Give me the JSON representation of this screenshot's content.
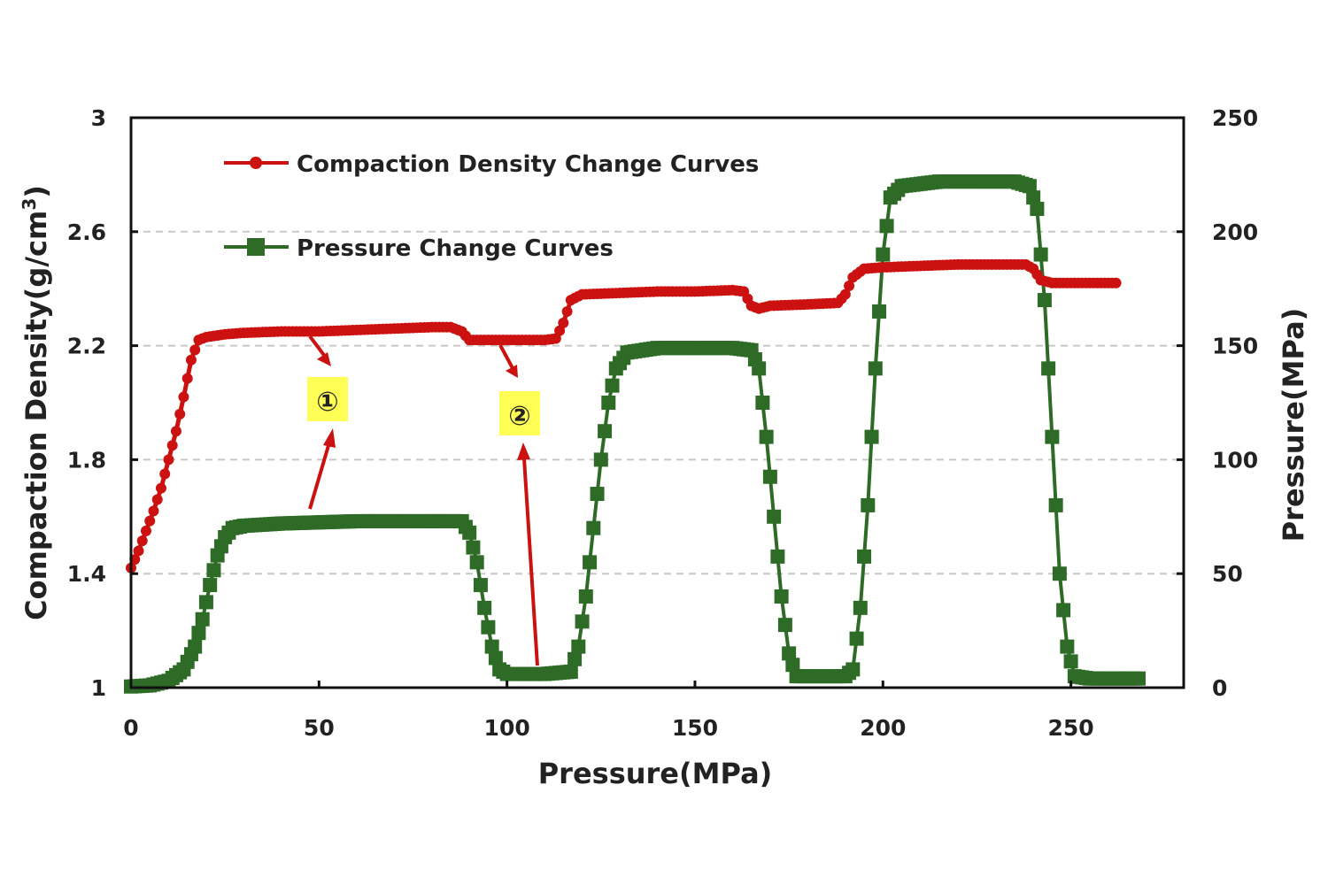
{
  "chart_data": {
    "type": "line",
    "title": "",
    "xlabel": "Pressure(MPa)",
    "ylabel_left": "Compaction Density(g/cm",
    "ylabel_left_sup": "3",
    "ylabel_left_close": ")",
    "ylabel_right": "Pressure(MPa)",
    "xlim": [
      0,
      280
    ],
    "ylim_left": [
      1,
      3
    ],
    "ylim_right": [
      0,
      250
    ],
    "x_ticks": [
      0,
      50,
      100,
      150,
      200,
      250
    ],
    "y_left_ticks": [
      1,
      1.4,
      1.8,
      2.2,
      2.6,
      3
    ],
    "y_right_ticks": [
      0,
      50,
      100,
      150,
      200,
      250
    ],
    "grid": "horizontal dashed",
    "legend_position": "top-left",
    "series": [
      {
        "name": "Compaction Density Change Curves",
        "axis": "left",
        "color": "#cc1111",
        "marker": "circle",
        "points": [
          [
            0,
            1.42
          ],
          [
            2,
            1.48
          ],
          [
            4,
            1.55
          ],
          [
            6,
            1.62
          ],
          [
            8,
            1.7
          ],
          [
            10,
            1.8
          ],
          [
            12,
            1.9
          ],
          [
            14,
            2.02
          ],
          [
            16,
            2.15
          ],
          [
            18,
            2.22
          ],
          [
            20,
            2.23
          ],
          [
            25,
            2.24
          ],
          [
            30,
            2.245
          ],
          [
            40,
            2.25
          ],
          [
            50,
            2.25
          ],
          [
            60,
            2.255
          ],
          [
            70,
            2.26
          ],
          [
            80,
            2.265
          ],
          [
            85,
            2.265
          ],
          [
            88,
            2.25
          ],
          [
            90,
            2.22
          ],
          [
            93,
            2.22
          ],
          [
            100,
            2.22
          ],
          [
            110,
            2.22
          ],
          [
            113,
            2.225
          ],
          [
            115,
            2.28
          ],
          [
            117,
            2.36
          ],
          [
            120,
            2.38
          ],
          [
            130,
            2.385
          ],
          [
            140,
            2.39
          ],
          [
            150,
            2.39
          ],
          [
            160,
            2.395
          ],
          [
            163,
            2.39
          ],
          [
            165,
            2.34
          ],
          [
            167,
            2.33
          ],
          [
            170,
            2.34
          ],
          [
            180,
            2.345
          ],
          [
            188,
            2.35
          ],
          [
            190,
            2.38
          ],
          [
            192,
            2.44
          ],
          [
            195,
            2.47
          ],
          [
            200,
            2.475
          ],
          [
            210,
            2.48
          ],
          [
            220,
            2.485
          ],
          [
            230,
            2.485
          ],
          [
            238,
            2.485
          ],
          [
            240,
            2.47
          ],
          [
            242,
            2.43
          ],
          [
            245,
            2.42
          ],
          [
            250,
            2.42
          ],
          [
            255,
            2.42
          ],
          [
            262,
            2.42
          ]
        ]
      },
      {
        "name": "Pressure Change Curves",
        "axis": "right",
        "color": "#2e6b27",
        "marker": "square",
        "points": [
          [
            0,
            0.5
          ],
          [
            5,
            1
          ],
          [
            10,
            3
          ],
          [
            14,
            8
          ],
          [
            17,
            18
          ],
          [
            19,
            30
          ],
          [
            21,
            45
          ],
          [
            23,
            58
          ],
          [
            25,
            66
          ],
          [
            27,
            70
          ],
          [
            30,
            71
          ],
          [
            40,
            72
          ],
          [
            50,
            72.5
          ],
          [
            60,
            73
          ],
          [
            70,
            73
          ],
          [
            80,
            73
          ],
          [
            88,
            73
          ],
          [
            90,
            68
          ],
          [
            92,
            55
          ],
          [
            94,
            35
          ],
          [
            96,
            18
          ],
          [
            98,
            8
          ],
          [
            100,
            6
          ],
          [
            110,
            6
          ],
          [
            117,
            7
          ],
          [
            119,
            18
          ],
          [
            121,
            40
          ],
          [
            123,
            70
          ],
          [
            125,
            100
          ],
          [
            127,
            125
          ],
          [
            129,
            140
          ],
          [
            132,
            147
          ],
          [
            140,
            149
          ],
          [
            150,
            149
          ],
          [
            160,
            149
          ],
          [
            165,
            148
          ],
          [
            167,
            140
          ],
          [
            169,
            110
          ],
          [
            171,
            75
          ],
          [
            173,
            40
          ],
          [
            175,
            15
          ],
          [
            177,
            5
          ],
          [
            180,
            5
          ],
          [
            190,
            5
          ],
          [
            192,
            8
          ],
          [
            194,
            35
          ],
          [
            196,
            80
          ],
          [
            198,
            140
          ],
          [
            200,
            190
          ],
          [
            202,
            215
          ],
          [
            205,
            220
          ],
          [
            215,
            222
          ],
          [
            225,
            222
          ],
          [
            235,
            222
          ],
          [
            239,
            220
          ],
          [
            241,
            210
          ],
          [
            243,
            170
          ],
          [
            245,
            110
          ],
          [
            247,
            50
          ],
          [
            249,
            18
          ],
          [
            251,
            5
          ],
          [
            255,
            4
          ],
          [
            268,
            4
          ]
        ]
      }
    ],
    "annotations": [
      {
        "label": "①",
        "background": "#ffff55"
      },
      {
        "label": "②",
        "background": "#ffff55"
      }
    ]
  }
}
